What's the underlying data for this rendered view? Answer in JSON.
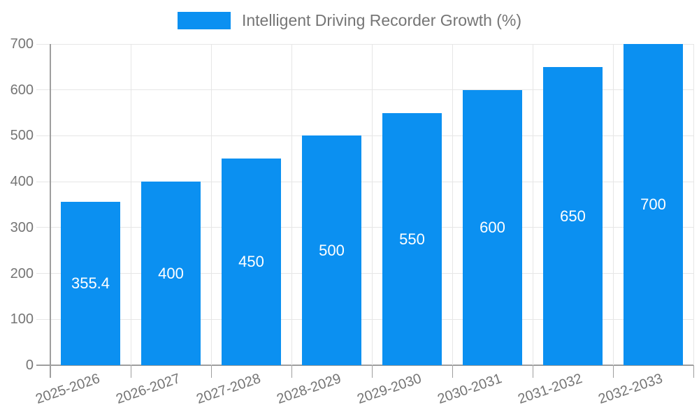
{
  "chart_data": {
    "type": "bar",
    "title": "Intelligent Driving Recorder Growth (%)",
    "categories": [
      "2025-2026",
      "2026-2027",
      "2027-2028",
      "2028-2029",
      "2029-2030",
      "2030-2031",
      "2031-2032",
      "2032-2033"
    ],
    "values": [
      355.4,
      400,
      450,
      500,
      550,
      600,
      650,
      700
    ],
    "value_labels": [
      "355.4",
      "400",
      "450",
      "500",
      "550",
      "600",
      "650",
      "700"
    ],
    "xlabel": "",
    "ylabel": "",
    "ylim": [
      0,
      700
    ],
    "yticks": [
      0,
      100,
      200,
      300,
      400,
      500,
      600,
      700
    ],
    "legend_position": "top",
    "grid": true,
    "bar_color": "#0b90f1",
    "bar_label_color": "#ffffff",
    "axis_text_color": "#757575",
    "gridline_color": "#e6e6e6",
    "axis_line_color": "#9e9e9e"
  }
}
